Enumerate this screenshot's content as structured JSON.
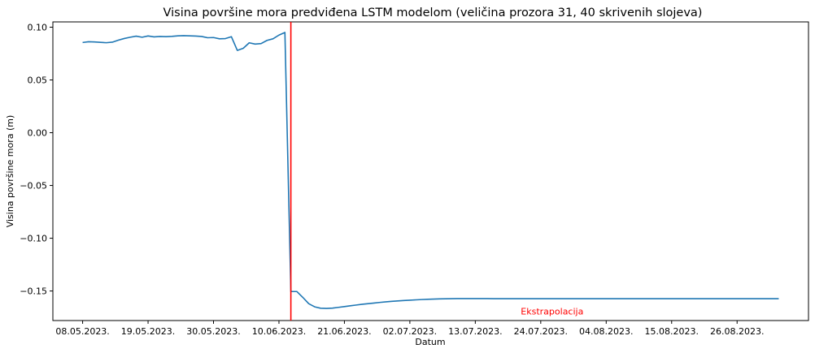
{
  "chart_data": {
    "type": "line",
    "title": "Visina površine mora predviđena LSTM modelom (veličina prozora 31, 40 skrivenih slojeva)",
    "xlabel": "Datum",
    "ylabel": "Visina površine mora (m)",
    "x_start": "2023-05-08",
    "x_end": "2023-09-02",
    "xlim": [
      "2023-05-03",
      "2023-09-07"
    ],
    "ylim": [
      -0.178,
      0.105
    ],
    "grid": false,
    "x_ticks": [
      {
        "date": "2023-05-08",
        "label": "08.05.2023."
      },
      {
        "date": "2023-05-19",
        "label": "19.05.2023."
      },
      {
        "date": "2023-05-30",
        "label": "30.05.2023."
      },
      {
        "date": "2023-06-10",
        "label": "10.06.2023."
      },
      {
        "date": "2023-06-21",
        "label": "21.06.2023."
      },
      {
        "date": "2023-07-02",
        "label": "02.07.2023."
      },
      {
        "date": "2023-07-13",
        "label": "13.07.2023."
      },
      {
        "date": "2023-07-24",
        "label": "24.07.2023."
      },
      {
        "date": "2023-08-04",
        "label": "04.08.2023."
      },
      {
        "date": "2023-08-15",
        "label": "15.08.2023."
      },
      {
        "date": "2023-08-26",
        "label": "26.08.2023."
      }
    ],
    "y_ticks": [
      {
        "value": 0.1,
        "label": "0.10"
      },
      {
        "value": 0.05,
        "label": "0.05"
      },
      {
        "value": 0.0,
        "label": "0.00"
      },
      {
        "value": -0.05,
        "label": "−0.05"
      },
      {
        "value": -0.1,
        "label": "−0.10"
      },
      {
        "value": -0.15,
        "label": "−0.15"
      }
    ],
    "series": [
      {
        "color": "#1f77b4",
        "values": [
          0.0855,
          0.0862,
          0.086,
          0.0856,
          0.0853,
          0.0858,
          0.0877,
          0.0893,
          0.0905,
          0.0915,
          0.0905,
          0.0917,
          0.0908,
          0.0912,
          0.091,
          0.0913,
          0.0918,
          0.092,
          0.0918,
          0.0916,
          0.0912,
          0.09,
          0.0902,
          0.089,
          0.0892,
          0.091,
          0.078,
          0.08,
          0.0852,
          0.084,
          0.0845,
          0.0875,
          0.089,
          0.0925,
          0.095,
          -0.1505,
          -0.1505,
          -0.156,
          -0.162,
          -0.165,
          -0.1663,
          -0.1665,
          -0.1662,
          -0.1655,
          -0.1648,
          -0.164,
          -0.1633,
          -0.1626,
          -0.162,
          -0.1614,
          -0.1608,
          -0.1603,
          -0.1598,
          -0.1594,
          -0.159,
          -0.1587,
          -0.1584,
          -0.1581,
          -0.1579,
          -0.1577,
          -0.1575,
          -0.1574,
          -0.1573,
          -0.1572,
          -0.1572,
          -0.1572,
          -0.1572,
          -0.1572,
          -0.1572,
          -0.1573,
          -0.1573,
          -0.1573,
          -0.1573,
          -0.1573,
          -0.1573,
          -0.1573,
          -0.1573,
          -0.1573,
          -0.1573,
          -0.1573,
          -0.1573,
          -0.1573,
          -0.1573,
          -0.1573,
          -0.1573,
          -0.1573,
          -0.1573,
          -0.1573,
          -0.1573,
          -0.1573,
          -0.1573,
          -0.1573,
          -0.1573,
          -0.1573,
          -0.1573,
          -0.1573,
          -0.1573,
          -0.1573,
          -0.1573,
          -0.1573,
          -0.1573,
          -0.1573,
          -0.1573,
          -0.1573,
          -0.1573,
          -0.1573,
          -0.1573,
          -0.1573,
          -0.1573,
          -0.1573,
          -0.1573,
          -0.1573,
          -0.1573,
          -0.1573,
          -0.1573,
          -0.1573,
          -0.1573,
          -0.1573
        ]
      }
    ],
    "vline": {
      "date": "2023-06-12",
      "color": "#ff0000"
    },
    "annotation": {
      "text": "Ekstrapolacija",
      "date": "2023-07-24",
      "value": -0.166,
      "color": "#ff0000"
    }
  }
}
